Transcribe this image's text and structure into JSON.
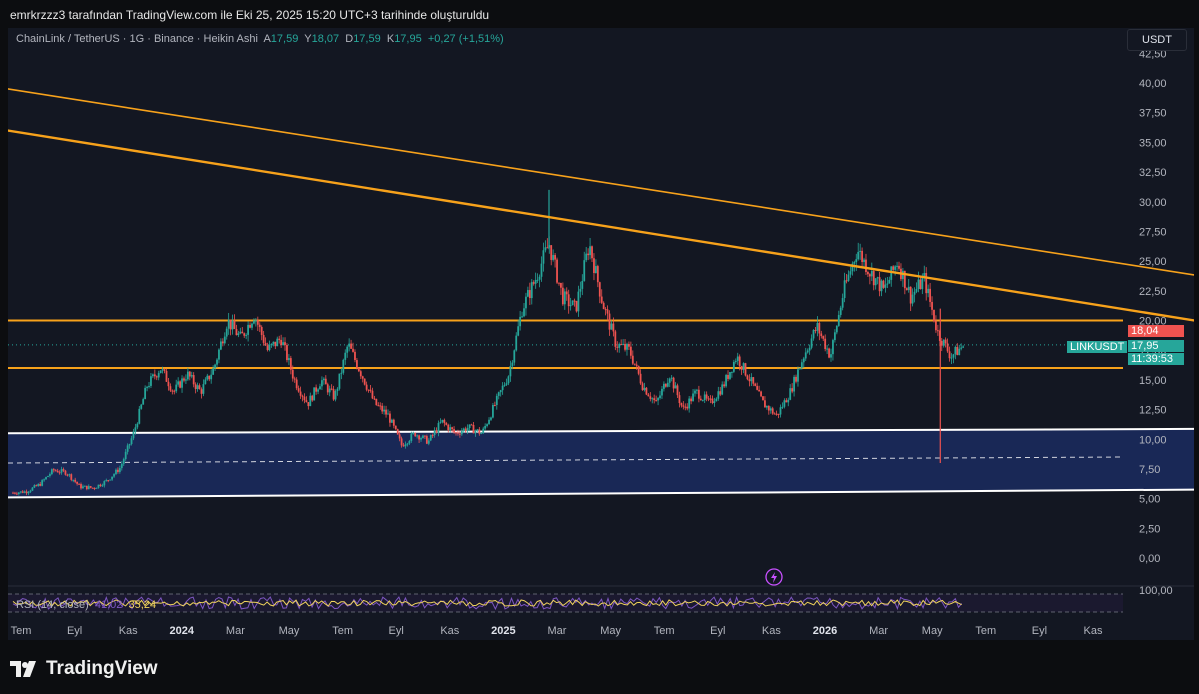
{
  "header": {
    "attribution": "emrkrzzz3 tarafından TradingView.com ile Eki 25, 2025 15:20 UTC+3 tarihinde oluşturuldu"
  },
  "legend": {
    "symbol": "ChainLink / TetherUS · 1G · Binance · Heikin Ashi",
    "a_label": "A",
    "a_value": "17,59",
    "y_label": "Y",
    "y_value": "18,07",
    "d_label": "D",
    "d_value": "17,59",
    "k_label": "K",
    "k_value": "17,95",
    "change": "+0,27 (+1,51%)"
  },
  "currency_button": "USDT",
  "rsi": {
    "label": "RSI (14, close)",
    "value1": "41,02",
    "value2": "35,24",
    "axis_label": "100,00"
  },
  "price_tags": {
    "high_price": "18,04",
    "symbol": "LINKUSDT",
    "last_price": "17,95",
    "countdown": "11:39:53"
  },
  "brand": {
    "name": "TradingView"
  },
  "colors": {
    "background": "#131722",
    "up": "#26a69a",
    "down": "#ef5350",
    "trendline": "#f7a21b",
    "support_line": "#ffffff",
    "zone_fill": "#1b2a5c",
    "rsi_line": "#7e57c2",
    "rsi_ma": "#f0d35c"
  },
  "chart_data": {
    "type": "candlestick",
    "style": "Heikin Ashi",
    "symbol": "ChainLink / TetherUS",
    "interval": "1G",
    "exchange": "Binance",
    "y_axis_ticks": [
      "0,00",
      "2,50",
      "5,00",
      "7,50",
      "10,00",
      "12,50",
      "15,00",
      "17,50",
      "20,00",
      "22,50",
      "25,00",
      "27,50",
      "30,00",
      "32,50",
      "35,00",
      "37,50",
      "40,00",
      "42,50"
    ],
    "ylim": [
      0,
      42.5
    ],
    "x_axis_ticks": [
      "Tem",
      "Eyl",
      "Kas",
      "2024",
      "Mar",
      "May",
      "Tem",
      "Eyl",
      "Kas",
      "2025",
      "Mar",
      "May",
      "Tem",
      "Eyl",
      "Kas",
      "2026",
      "Mar",
      "May",
      "Tem",
      "Eyl",
      "Kas"
    ],
    "x_bold_ticks": [
      "2024",
      "2025",
      "2026"
    ],
    "price_path": [
      [
        0,
        5.5
      ],
      [
        0.5,
        5.6
      ],
      [
        1,
        6.2
      ],
      [
        1.5,
        7.4
      ],
      [
        2,
        7.2
      ],
      [
        2.5,
        6.0
      ],
      [
        3,
        5.9
      ],
      [
        3.5,
        6.5
      ],
      [
        4,
        7.6
      ],
      [
        4.5,
        10.5
      ],
      [
        5,
        14.5
      ],
      [
        5.5,
        16.0
      ],
      [
        6,
        14.0
      ],
      [
        6.5,
        15.5
      ],
      [
        7,
        14.0
      ],
      [
        7.5,
        16.0
      ],
      [
        8,
        20.0
      ],
      [
        8.5,
        18.5
      ],
      [
        9,
        20.5
      ],
      [
        9.5,
        17.5
      ],
      [
        10,
        18.5
      ],
      [
        10.5,
        15.0
      ],
      [
        11,
        13.0
      ],
      [
        11.5,
        15.0
      ],
      [
        12,
        13.5
      ],
      [
        12.5,
        18.0
      ],
      [
        13,
        15.5
      ],
      [
        13.5,
        13.0
      ],
      [
        14,
        12.0
      ],
      [
        14.5,
        9.5
      ],
      [
        15,
        10.5
      ],
      [
        15.5,
        9.8
      ],
      [
        16,
        11.5
      ],
      [
        16.5,
        10.5
      ],
      [
        17,
        11.0
      ],
      [
        17.5,
        10.5
      ],
      [
        18,
        13.0
      ],
      [
        18.5,
        15.5
      ],
      [
        19,
        21.0
      ],
      [
        19.5,
        23.5
      ],
      [
        20,
        26.5
      ],
      [
        20.5,
        22.0
      ],
      [
        21,
        21.0
      ],
      [
        21.5,
        26.5
      ],
      [
        22,
        21.5
      ],
      [
        22.5,
        18.0
      ],
      [
        23,
        17.5
      ],
      [
        23.5,
        14.5
      ],
      [
        24,
        13.0
      ],
      [
        24.5,
        15.5
      ],
      [
        25,
        12.5
      ],
      [
        25.5,
        14.0
      ],
      [
        26,
        13.0
      ],
      [
        26.5,
        14.5
      ],
      [
        27,
        17.0
      ],
      [
        27.5,
        15.0
      ],
      [
        28,
        13.0
      ],
      [
        28.5,
        12.0
      ],
      [
        29,
        14.0
      ],
      [
        29.5,
        17.0
      ],
      [
        30,
        19.5
      ],
      [
        30.5,
        17.0
      ],
      [
        31,
        22.5
      ],
      [
        31.5,
        26.0
      ],
      [
        32,
        24.0
      ],
      [
        32.5,
        22.5
      ],
      [
        33,
        25.0
      ],
      [
        33.5,
        22.0
      ],
      [
        34,
        23.5
      ],
      [
        34.5,
        19.0
      ],
      [
        35,
        17.0
      ],
      [
        35.5,
        17.95
      ]
    ],
    "price_path_units": "[month index from Tem 2023, price USDT]",
    "spike_low": 8.0,
    "spike_high": 31.0,
    "trendlines": [
      {
        "from": [
          -0.2,
          39.5
        ],
        "to": [
          53.5,
          20.5
        ]
      },
      {
        "from": [
          -0.2,
          36.0
        ],
        "to": [
          53.5,
          16.6
        ]
      }
    ],
    "horizontal_levels": [
      20.0,
      16.0
    ],
    "support_lines": [
      {
        "from": [
          -0.2,
          10.5
        ],
        "to": [
          53.5,
          10.95
        ]
      },
      {
        "from": [
          -0.2,
          5.1
        ],
        "to": [
          53.5,
          5.9
        ]
      }
    ],
    "zone_dashed_level": 8.0,
    "last_price": 17.95,
    "high_marker": 18.04,
    "rsi_ticks": [
      "100,00"
    ]
  }
}
